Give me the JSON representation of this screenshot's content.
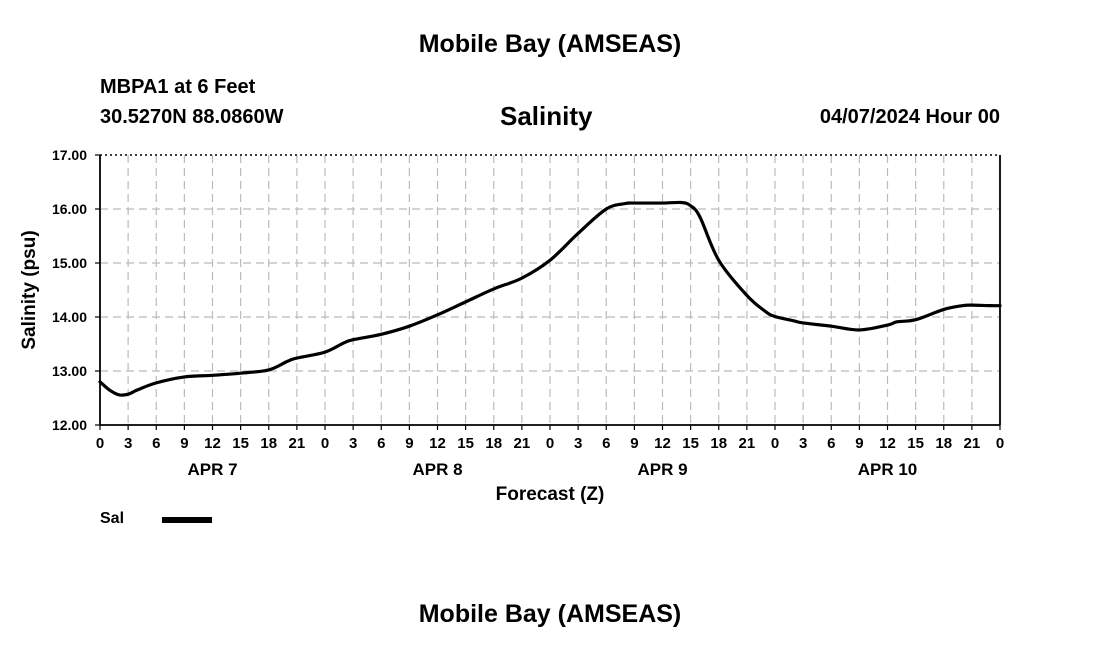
{
  "header": {
    "title": "Mobile Bay (AMSEAS)",
    "station": "MBPA1 at 6 Feet",
    "coords": "30.5270N  88.0860W",
    "chart_title": "Salinity",
    "run_time": "04/07/2024 Hour 00"
  },
  "footer": {
    "title": "Mobile Bay (AMSEAS)"
  },
  "legend": {
    "label": "Sal",
    "color": "#000000"
  },
  "chart_data": {
    "type": "line",
    "title": "Salinity",
    "xlabel": "Forecast (Z)",
    "ylabel": "Salinity (psu)",
    "xlim": [
      0,
      96
    ],
    "ylim": [
      12,
      17
    ],
    "y_ticks": [
      "12.00",
      "13.00",
      "14.00",
      "15.00",
      "16.00",
      "17.00"
    ],
    "x_tick_labels": [
      "0",
      "3",
      "6",
      "9",
      "12",
      "15",
      "18",
      "21",
      "0",
      "3",
      "6",
      "9",
      "12",
      "15",
      "18",
      "21",
      "0",
      "3",
      "6",
      "9",
      "12",
      "15",
      "18",
      "21",
      "0",
      "3",
      "6",
      "9",
      "12",
      "15",
      "18",
      "21",
      "0"
    ],
    "date_labels": [
      {
        "label": "APR 7",
        "hour": 12
      },
      {
        "label": "APR 8",
        "hour": 36
      },
      {
        "label": "APR 9",
        "hour": 60
      },
      {
        "label": "APR 10",
        "hour": 84
      }
    ],
    "grid": true,
    "series": [
      {
        "name": "Sal",
        "x": [
          0,
          1,
          2,
          3,
          4,
          6,
          9,
          12,
          15,
          18,
          20,
          21,
          24,
          26,
          27,
          30,
          33,
          36,
          39,
          42,
          45,
          48,
          51,
          54,
          56,
          57,
          60,
          62,
          63,
          64,
          66,
          69,
          71,
          72,
          74,
          75,
          78,
          81,
          84,
          85,
          87,
          90,
          92,
          93,
          95,
          96
        ],
        "y": [
          12.8,
          12.65,
          12.56,
          12.57,
          12.65,
          12.78,
          12.89,
          12.92,
          12.96,
          13.02,
          13.18,
          13.24,
          13.35,
          13.52,
          13.58,
          13.68,
          13.83,
          14.04,
          14.28,
          14.52,
          14.72,
          15.05,
          15.55,
          16.0,
          16.1,
          16.11,
          16.11,
          16.12,
          16.06,
          15.85,
          15.05,
          14.4,
          14.1,
          14.01,
          13.93,
          13.89,
          13.83,
          13.76,
          13.85,
          13.91,
          13.95,
          14.14,
          14.21,
          14.22,
          14.21,
          14.21
        ]
      }
    ]
  }
}
